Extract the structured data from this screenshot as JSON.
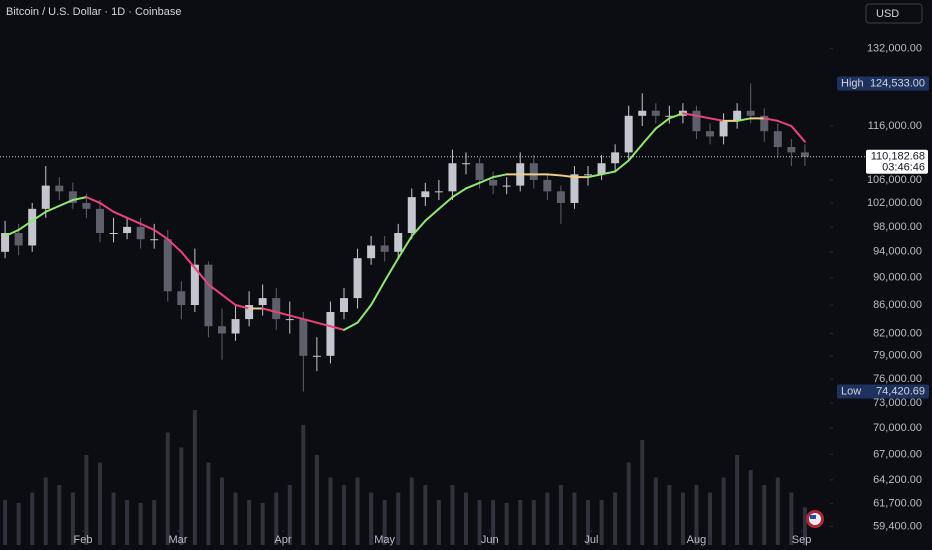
{
  "chart_data": {
    "type": "candlestick",
    "title": "Bitcoin / U.S. Dollar · 1D · Coinbase",
    "currency": "USD",
    "x": [
      8,
      12,
      16,
      20,
      24,
      28,
      32,
      36,
      40,
      44,
      48,
      52,
      56,
      60,
      64,
      68,
      72,
      76,
      80,
      84,
      88,
      92,
      96,
      100,
      104,
      108,
      112,
      116,
      120,
      124,
      128,
      132,
      136,
      140,
      144,
      148,
      152,
      156,
      160,
      164,
      168,
      172,
      176,
      180,
      184,
      188,
      192,
      196,
      200,
      204,
      208,
      212,
      216,
      220,
      224,
      228,
      232,
      236,
      240,
      244
    ],
    "open": [
      94000,
      97000,
      95000,
      101000,
      105000,
      104000,
      102000,
      101000,
      97000,
      97000,
      98000,
      96000,
      96000,
      88000,
      86000,
      92000,
      83000,
      82000,
      84000,
      86000,
      87000,
      84000,
      84000,
      79000,
      79000,
      85000,
      87000,
      93000,
      95000,
      94000,
      97000,
      103000,
      104000,
      104000,
      109000,
      109000,
      106000,
      105000,
      105000,
      109000,
      106000,
      104000,
      102000,
      107000,
      107000,
      109000,
      111000,
      118000,
      119000,
      118000,
      118000,
      119000,
      115000,
      114000,
      117000,
      119000,
      118000,
      115000,
      112000,
      111000
    ],
    "high": [
      99000,
      98500,
      102000,
      108500,
      106500,
      105500,
      103500,
      102500,
      99500,
      99500,
      99500,
      98500,
      97500,
      89500,
      94500,
      92500,
      85500,
      86000,
      88000,
      89000,
      88500,
      86500,
      85000,
      81500,
      86500,
      88500,
      94500,
      96500,
      96500,
      98500,
      104500,
      105500,
      106000,
      111500,
      111000,
      110000,
      107500,
      106500,
      111000,
      110500,
      107000,
      105000,
      108500,
      108500,
      110500,
      112500,
      120000,
      122500,
      120500,
      120000,
      120500,
      120000,
      116500,
      118500,
      120500,
      124533,
      119500,
      116500,
      113500,
      112500
    ],
    "low": [
      93000,
      93500,
      94000,
      99500,
      102500,
      101000,
      99500,
      95500,
      95500,
      96000,
      94500,
      94500,
      86500,
      84000,
      85000,
      81500,
      78500,
      81000,
      83000,
      84500,
      82500,
      82000,
      74420.69,
      77000,
      78000,
      84000,
      85500,
      92000,
      92500,
      93000,
      96000,
      101500,
      102500,
      102500,
      107000,
      104500,
      103500,
      103500,
      104000,
      104500,
      102500,
      98500,
      101000,
      105000,
      106000,
      107500,
      109500,
      116000,
      116500,
      116500,
      116500,
      113500,
      112500,
      112500,
      115500,
      116500,
      113000,
      110000,
      108500,
      108500
    ],
    "close": [
      97000,
      95000,
      101000,
      105000,
      104000,
      102000,
      101000,
      97000,
      97000,
      98000,
      96000,
      96000,
      88000,
      86000,
      92000,
      83000,
      82000,
      84000,
      86000,
      87000,
      84000,
      84000,
      79000,
      79000,
      85000,
      87000,
      93000,
      95000,
      94000,
      97000,
      103000,
      104000,
      104000,
      109000,
      109000,
      106000,
      105000,
      105000,
      109000,
      106000,
      104000,
      102000,
      107000,
      107000,
      109000,
      111000,
      118000,
      119000,
      118000,
      118000,
      119000,
      115000,
      114000,
      117000,
      119000,
      118000,
      115000,
      112000,
      111000,
      110182.68
    ],
    "ma": [
      96500,
      97500,
      99000,
      100500,
      101500,
      102500,
      103000,
      102000,
      100500,
      99500,
      98500,
      97500,
      96000,
      94000,
      91500,
      89000,
      87500,
      86000,
      85500,
      85500,
      85000,
      84500,
      84000,
      83500,
      83000,
      82500,
      83500,
      86000,
      89500,
      93000,
      96500,
      99000,
      101000,
      103000,
      104500,
      105500,
      106500,
      107000,
      107000,
      107000,
      107000,
      106800,
      106500,
      106500,
      107000,
      107500,
      109500,
      112500,
      115500,
      117500,
      118500,
      118000,
      117500,
      117000,
      117000,
      117500,
      117500,
      117000,
      116000,
      113000
    ],
    "volume": [
      30,
      28,
      35,
      45,
      40,
      35,
      60,
      55,
      35,
      30,
      28,
      30,
      75,
      65,
      90,
      55,
      45,
      35,
      30,
      28,
      35,
      40,
      80,
      60,
      45,
      40,
      45,
      35,
      30,
      35,
      45,
      40,
      30,
      40,
      35,
      30,
      30,
      28,
      30,
      30,
      35,
      40,
      35,
      30,
      30,
      35,
      55,
      70,
      45,
      40,
      35,
      40,
      35,
      45,
      60,
      50,
      40,
      45,
      35,
      25
    ],
    "volume_lim": [
      0,
      100
    ],
    "colors": {
      "up": "#c3c6ce",
      "down": "#5d606b",
      "volume": "#30333b",
      "ma_up": "#8ee86f",
      "ma_flat": "#ecd08a",
      "ma_down": "#e8437a"
    },
    "log_scale": true,
    "grid": false,
    "xlim": [
      6.5,
      251.4
    ],
    "xticks": [
      {
        "value": 31,
        "label": "Feb"
      },
      {
        "value": 59,
        "label": "Mar"
      },
      {
        "value": 90,
        "label": "Apr"
      },
      {
        "value": 120,
        "label": "May"
      },
      {
        "value": 151,
        "label": "Jun"
      },
      {
        "value": 181,
        "label": "Jul"
      },
      {
        "value": 212,
        "label": "Aug"
      },
      {
        "value": 243,
        "label": "Sep"
      }
    ],
    "ylim": [
      57100,
      143200
    ],
    "yticks": [
      {
        "value": 132000,
        "label": "132,000.00"
      },
      {
        "value": 116000,
        "label": "116,000.00"
      },
      {
        "value": 106000,
        "label": "106,000.00"
      },
      {
        "value": 102000,
        "label": "102,000.00"
      },
      {
        "value": 98000,
        "label": "98,000.00"
      },
      {
        "value": 94000,
        "label": "94,000.00"
      },
      {
        "value": 90000,
        "label": "90,000.00"
      },
      {
        "value": 86000,
        "label": "86,000.00"
      },
      {
        "value": 82000,
        "label": "82,000.00"
      },
      {
        "value": 79000,
        "label": "79,000.00"
      },
      {
        "value": 76000,
        "label": "76,000.00"
      },
      {
        "value": 73000,
        "label": "73,000.00"
      },
      {
        "value": 70000,
        "label": "70,000.00"
      },
      {
        "value": 67000,
        "label": "67,000.00"
      },
      {
        "value": 64200,
        "label": "64,200.00"
      },
      {
        "value": 61700,
        "label": "61,700.00"
      },
      {
        "value": 59400,
        "label": "59,400.00"
      }
    ],
    "high_marker": {
      "text": "High",
      "value": 124533,
      "label": "124,533.00"
    },
    "low_marker": {
      "text": "Low",
      "value": 74420.69,
      "label": "74,420.69"
    },
    "last_price": {
      "value": 110182.68,
      "label": "110,182.68",
      "countdown": "03:46:46"
    }
  }
}
